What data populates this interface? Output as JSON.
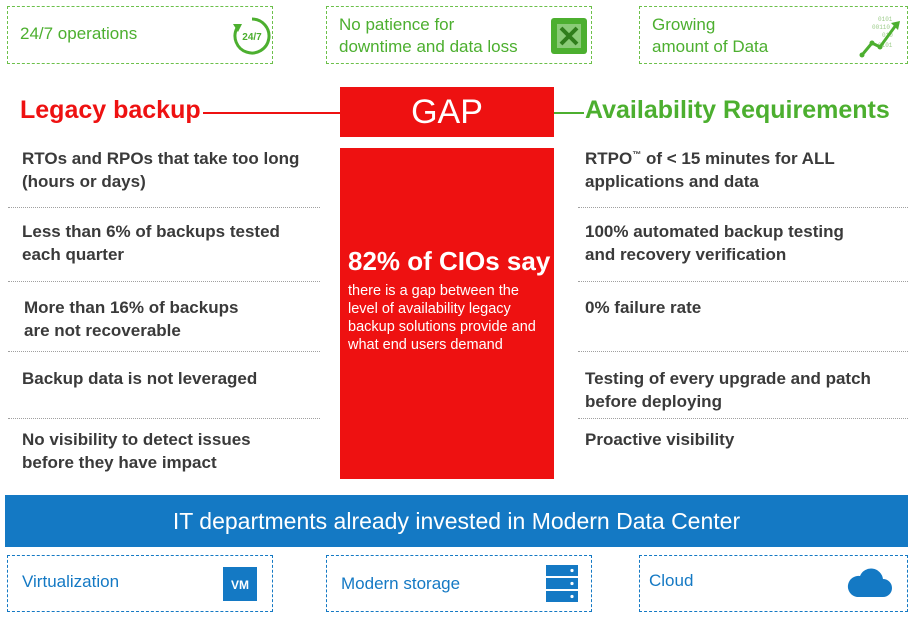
{
  "top_boxes": [
    {
      "line1": "24/7 operations",
      "line2": "",
      "icon": "clock-247-icon",
      "icon_text": "24/7"
    },
    {
      "line1": "No patience for",
      "line2": "downtime and data loss",
      "icon": "broken-box-icon"
    },
    {
      "line1": "Growing",
      "line2": "amount of Data",
      "icon": "growth-arrow-icon"
    }
  ],
  "legacy": {
    "title": "Legacy backup",
    "items": [
      {
        "line1": "RTOs and RPOs that take too long",
        "line2": "(hours or days)"
      },
      {
        "line1": "Less than 6% of backups tested",
        "line2": "each quarter"
      },
      {
        "line1": "More than 16% of backups",
        "line2": "are not recoverable"
      },
      {
        "line1": "Backup data is not leveraged",
        "line2": ""
      },
      {
        "line1": "No visibility to detect issues",
        "line2": "before they have impact"
      }
    ]
  },
  "gap": {
    "label": "GAP",
    "stat": "82% of CIOs say",
    "description": "there is a gap between the level of availability legacy backup solutions provide and what end users demand"
  },
  "availability": {
    "title": "Availability Requirements",
    "items": [
      {
        "line1_pre": "RTPO",
        "line1_sup": "™",
        "line1_post": " of < 15 minutes for ALL",
        "line2": "applications and data"
      },
      {
        "line1": "100% automated backup testing",
        "line2": "and recovery verification"
      },
      {
        "line1": "0% failure rate",
        "line2": ""
      },
      {
        "line1": "Testing of every upgrade and patch",
        "line2": "before deploying"
      },
      {
        "line1": "Proactive visibility",
        "line2": ""
      }
    ]
  },
  "banner": {
    "text": "IT departments already invested in Modern Data Center"
  },
  "bottom_boxes": [
    {
      "label": "Virtualization",
      "icon": "vm-icon",
      "icon_text": "VM"
    },
    {
      "label": "Modern storage",
      "icon": "storage-icon"
    },
    {
      "label": "Cloud",
      "icon": "cloud-icon"
    }
  ],
  "colors": {
    "legacy_red": "#ee1111",
    "availability_green": "#4caf2f",
    "banner_blue": "#1479c4",
    "gap_red": "#ee1111",
    "text_dark": "#3a3a3a"
  }
}
